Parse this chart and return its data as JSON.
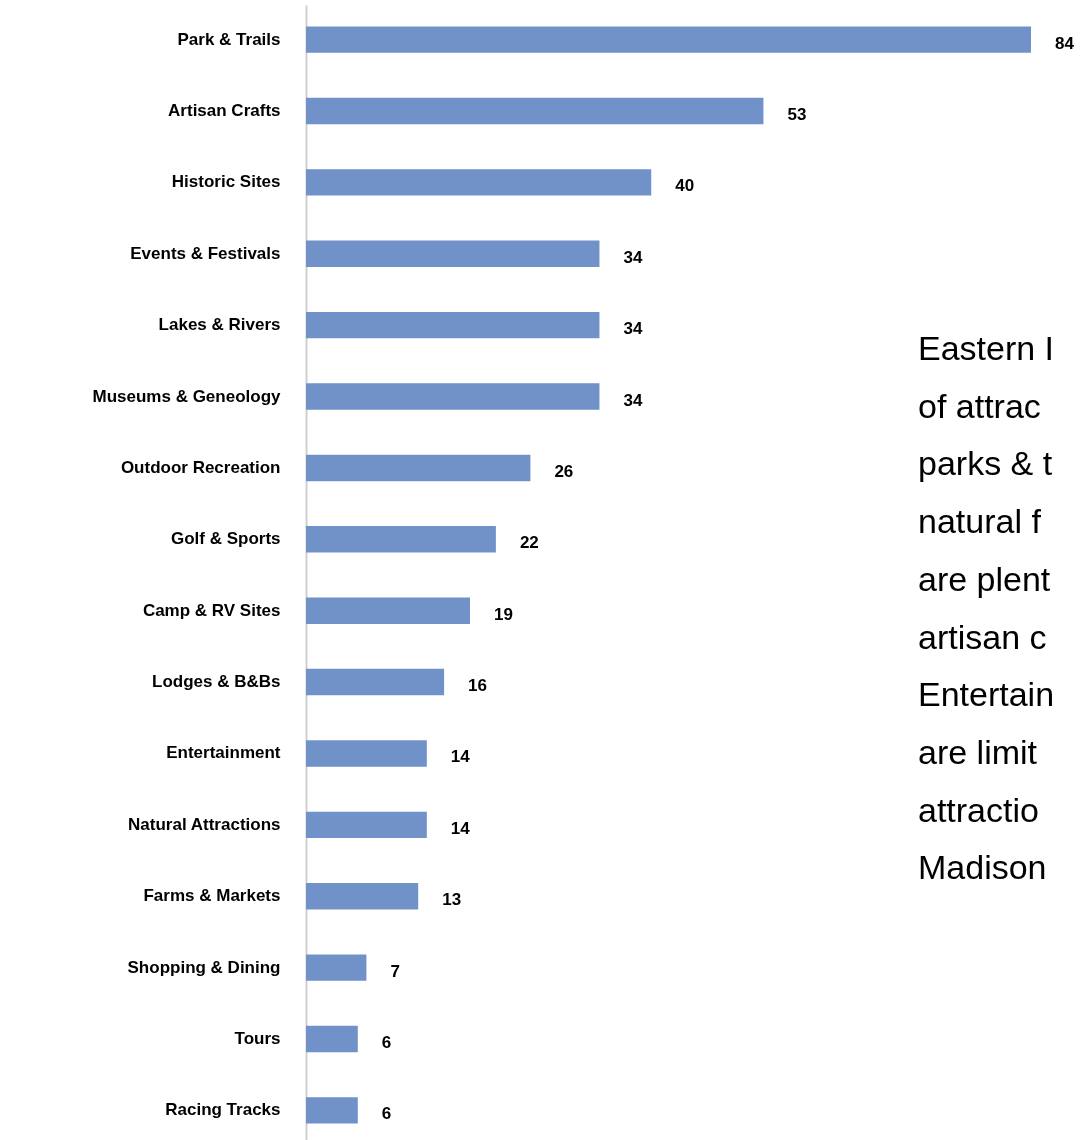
{
  "chart_data": {
    "type": "bar",
    "orientation": "horizontal",
    "categories": [
      "Park & Trails",
      "Artisan Crafts",
      "Historic Sites",
      "Events & Festivals",
      "Lakes & Rivers",
      "Museums & Geneology",
      "Outdoor Recreation",
      "Golf & Sports",
      "Camp & RV Sites",
      "Lodges & B&Bs",
      "Entertainment",
      "Natural Attractions",
      "Farms & Markets",
      "Shopping & Dining",
      "Tours",
      "Racing Tracks"
    ],
    "values": [
      84,
      53,
      40,
      34,
      34,
      34,
      26,
      22,
      19,
      16,
      14,
      14,
      13,
      7,
      6,
      6
    ],
    "color": "#7092c9",
    "data_labels": true,
    "grid": false,
    "tick_labels": "y",
    "annotations": [
      "Eastern I\nof attrac\nparks & t\nnatural f\nare plent\nartisan c\nEntertain\nare limit\nattractio\nMadison"
    ]
  }
}
